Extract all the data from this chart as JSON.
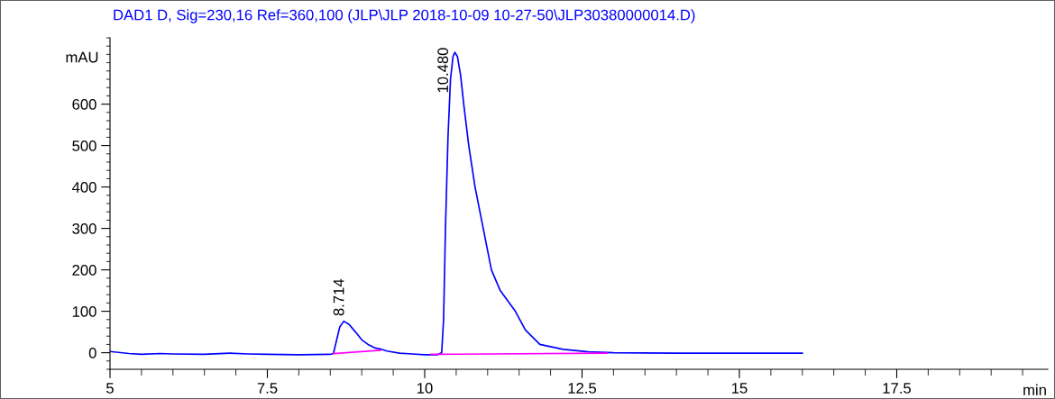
{
  "chart_data": {
    "type": "line",
    "title": "DAD1 D, Sig=230,16 Ref=360,100 (JLP\\JLP 2018-10-09 10-27-50\\JLP30380000014.D)",
    "xlabel": "min",
    "ylabel": "mAU",
    "series": [
      {
        "color": "#0000ff",
        "x": [
          5.0,
          5.3,
          5.5,
          5.8,
          6.0,
          6.5,
          6.9,
          7.2,
          7.5,
          8.0,
          8.5,
          8.55,
          8.6,
          8.65,
          8.714,
          8.8,
          8.9,
          9.0,
          9.1,
          9.2,
          9.3,
          9.4,
          9.6,
          9.8,
          10.0,
          10.2,
          10.27,
          10.3,
          10.33,
          10.37,
          10.41,
          10.45,
          10.48,
          10.52,
          10.57,
          10.62,
          10.7,
          10.8,
          10.93,
          11.06,
          11.2,
          11.44,
          11.6,
          11.83,
          12.2,
          12.6,
          13.0,
          14.0,
          15.0,
          16.0
        ],
        "values": [
          3,
          -2,
          -4,
          -2,
          -3,
          -4,
          -1,
          -3,
          -4,
          -5,
          -4,
          -2,
          30,
          62,
          76,
          68,
          50,
          31,
          20,
          12,
          9,
          4,
          -1,
          -3,
          -5,
          -5,
          0,
          80,
          300,
          520,
          660,
          715,
          725,
          715,
          670,
          600,
          500,
          400,
          300,
          200,
          150,
          100,
          55,
          20,
          8,
          2,
          0,
          -1,
          -1,
          -1
        ]
      },
      {
        "color": "#ff00ff",
        "x": [
          8.55,
          9.3,
          9.31,
          10.1,
          12.9
        ],
        "values": [
          -2,
          6,
          null,
          -4,
          -1
        ]
      }
    ],
    "annotations": [
      {
        "text": "8.714",
        "x": 8.714,
        "y": 76
      },
      {
        "text": "10.480",
        "x": 10.48,
        "y": 725
      }
    ],
    "xlim": [
      5,
      19.9
    ],
    "xticks": [
      5,
      7.5,
      10,
      12.5,
      15,
      17.5
    ],
    "ylim": [
      -40,
      760
    ],
    "yticks": [
      0,
      100,
      200,
      300,
      400,
      500,
      600
    ],
    "grid": false,
    "legend": false
  }
}
